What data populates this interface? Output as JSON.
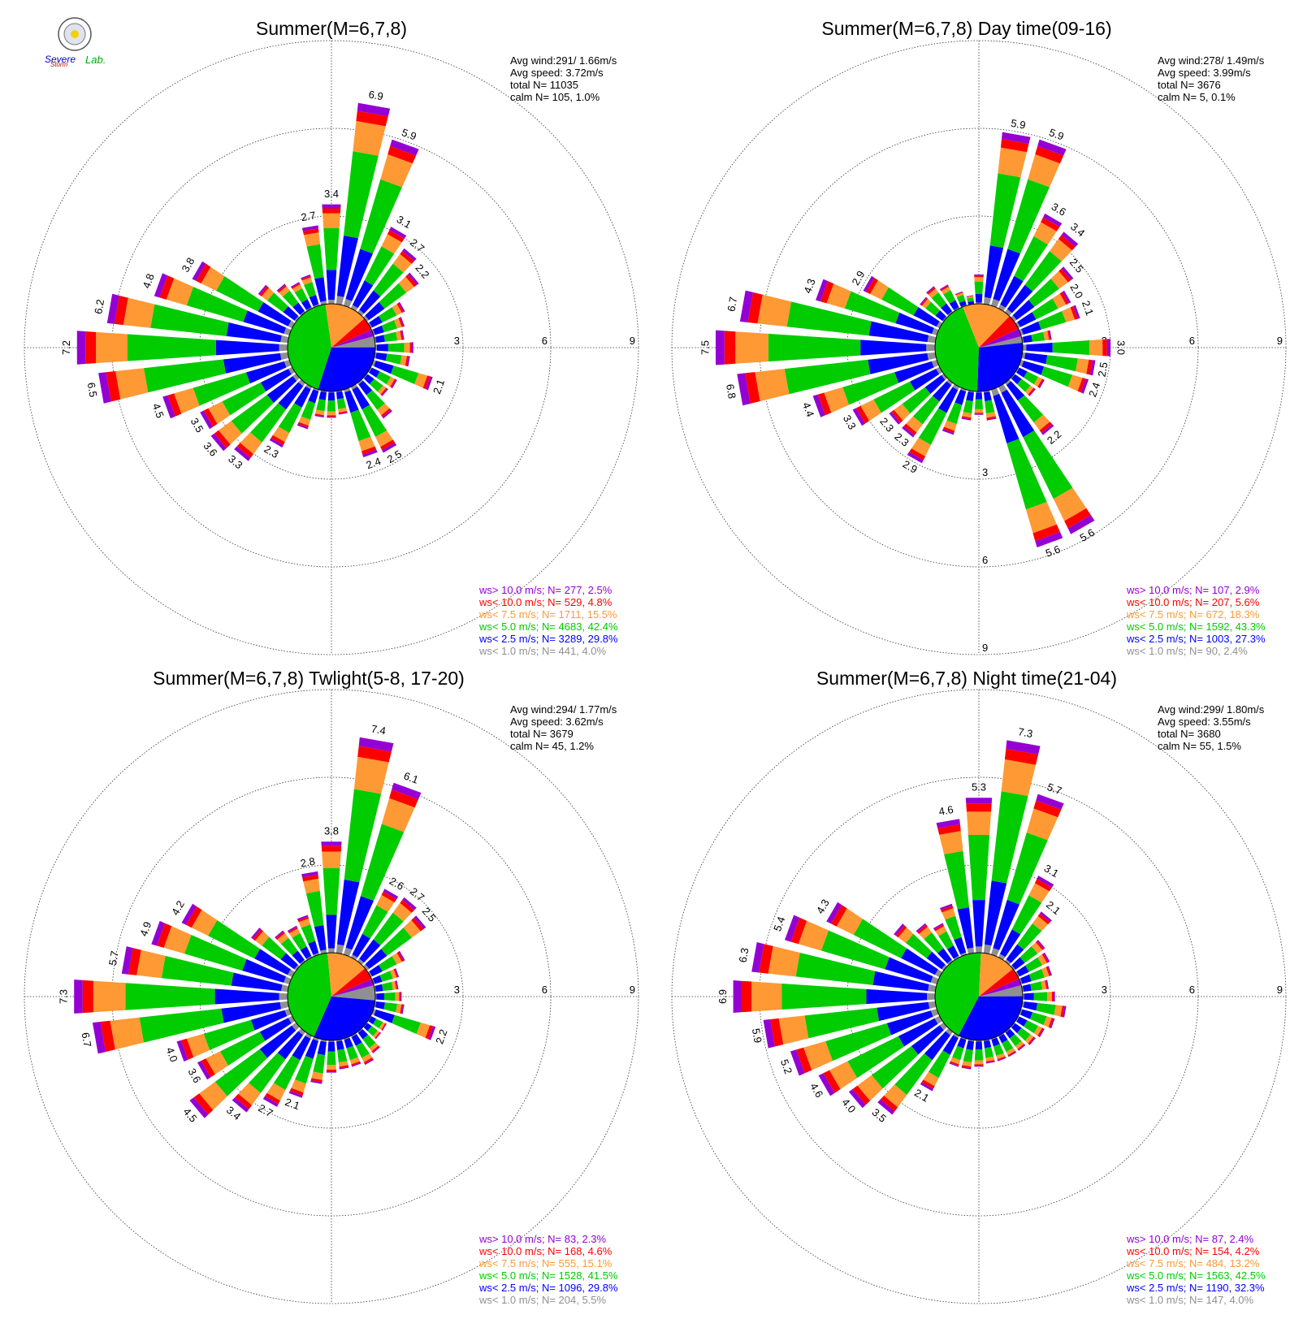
{
  "logo": {
    "text_a": "Severe",
    "text_b": "Storm",
    "text_c": "Lab."
  },
  "colors": {
    "gt10": "#9400d3",
    "lt10": "#ff0000",
    "lt7_5": "#ff9933",
    "lt5": "#00cc00",
    "lt2_5": "#0000ff",
    "lt1": "#909090"
  },
  "chart_data": [
    {
      "type": "windrose",
      "title": "Summer(M=6,7,8)",
      "info": [
        "Avg wind:291/ 1.66m/s",
        "Avg speed: 3.72m/s",
        "total N=      11035",
        "calm N=    105,   1.0%"
      ],
      "rings": [
        3,
        6,
        9
      ],
      "ring_label_direction": "east",
      "legend": [
        {
          "text": "ws> 10.0 m/s; N=   277,  2.5%",
          "color": "#9400d3"
        },
        {
          "text": "ws< 10.0 m/s; N=   529,  4.8%",
          "color": "#ff0000"
        },
        {
          "text": "ws<  7.5 m/s; N=  1711, 15.5%",
          "color": "#ff9933"
        },
        {
          "text": "ws<  5.0 m/s; N=  4683, 42.4%",
          "color": "#00cc00"
        },
        {
          "text": "ws<  2.5 m/s; N=  3289, 29.8%",
          "color": "#0000ff"
        },
        {
          "text": "ws<  1.0 m/s; N=   441,  4.0%",
          "color": "#909090"
        }
      ],
      "inner_pie": [
        4.0,
        29.8,
        42.4,
        15.5,
        4.8,
        2.5
      ],
      "directions_deg": [
        0,
        10,
        20,
        30,
        40,
        50,
        60,
        70,
        80,
        90,
        100,
        110,
        120,
        130,
        140,
        150,
        160,
        170,
        180,
        190,
        200,
        210,
        220,
        230,
        240,
        250,
        260,
        270,
        280,
        290,
        300,
        310,
        320,
        330,
        340,
        350
      ],
      "totals": [
        3.4,
        6.9,
        5.9,
        3.1,
        2.7,
        2.2,
        1.3,
        1.1,
        1.0,
        1.3,
        1.2,
        2.1,
        1.0,
        0.9,
        1.5,
        2.5,
        2.4,
        0.8,
        0.9,
        0.9,
        1.4,
        2.3,
        3.3,
        3.6,
        3.5,
        4.5,
        6.5,
        7.2,
        6.2,
        4.8,
        3.8,
        1.6,
        1.2,
        1.0,
        1.1,
        2.7
      ],
      "labels": {
        "0": "3.4",
        "10": "6.9",
        "20": "5.9",
        "30": "3.1",
        "40": "2.7",
        "50": "2.2",
        "110": "2.1",
        "150": "2.5",
        "160": "2.4",
        "210": "2.3",
        "220": "3.3",
        "230": "3.6",
        "240": "3.5",
        "250": "4.5",
        "260": "6.5",
        "270": "7.2",
        "280": "6.2",
        "290": "4.8",
        "300": "3.8",
        "350": "2.7"
      }
    },
    {
      "type": "windrose",
      "title": "Summer(M=6,7,8) Day time(09-16)",
      "info": [
        "Avg wind:278/ 1.49m/s",
        "Avg speed: 3.99m/s",
        "total N=       3676",
        "calm N=      5,   0.1%"
      ],
      "rings": [
        3,
        6,
        9
      ],
      "ring_label_direction": "east-south",
      "legend": [
        {
          "text": "ws> 10.0 m/s; N=   107,  2.9%",
          "color": "#9400d3"
        },
        {
          "text": "ws< 10.0 m/s; N=   207,  5.6%",
          "color": "#ff0000"
        },
        {
          "text": "ws<  7.5 m/s; N=   672, 18.3%",
          "color": "#ff9933"
        },
        {
          "text": "ws<  5.0 m/s; N=  1592, 43.3%",
          "color": "#00cc00"
        },
        {
          "text": "ws<  2.5 m/s; N=  1003, 27.3%",
          "color": "#0000ff"
        },
        {
          "text": "ws<  1.0 m/s; N=    90,  2.4%",
          "color": "#909090"
        }
      ],
      "inner_pie": [
        2.4,
        27.3,
        43.3,
        18.3,
        5.6,
        2.9
      ],
      "directions_deg": [
        0,
        10,
        20,
        30,
        40,
        50,
        60,
        70,
        80,
        90,
        100,
        110,
        120,
        130,
        140,
        150,
        160,
        170,
        180,
        190,
        200,
        210,
        220,
        230,
        240,
        250,
        260,
        270,
        280,
        290,
        300,
        310,
        320,
        330,
        340,
        350
      ],
      "totals": [
        1.0,
        5.9,
        5.9,
        3.6,
        3.4,
        2.5,
        2.0,
        2.1,
        1.0,
        3.0,
        2.5,
        2.4,
        1.0,
        0.9,
        2.2,
        5.6,
        5.6,
        1.0,
        0.8,
        1.0,
        1.6,
        2.9,
        2.3,
        2.3,
        3.3,
        4.4,
        6.8,
        7.5,
        6.7,
        4.3,
        2.9,
        1.0,
        1.1,
        0.9,
        0.5,
        0.3
      ],
      "labels": {
        "10": "5.9",
        "20": "5.9",
        "30": "3.6",
        "40": "3.4",
        "50": "2.5",
        "60": "2.0",
        "70": "2.1",
        "90": "3.0",
        "100": "2.5",
        "110": "2.4",
        "140": "2.2",
        "150": "5.6",
        "160": "5.6",
        "210": "2.9",
        "220": "2.3",
        "230": "2.3",
        "240": "3.3",
        "250": "4.4",
        "260": "6.8",
        "270": "7.5",
        "280": "6.7",
        "290": "4.3",
        "300": "2.9"
      }
    },
    {
      "type": "windrose",
      "title": "Summer(M=6,7,8) Twlight(5-8, 17-20)",
      "info": [
        "Avg wind:294/ 1.77m/s",
        "Avg speed: 3.62m/s",
        "total N=       3679",
        "calm N=     45,   1.2%"
      ],
      "rings": [
        3,
        6,
        9
      ],
      "ring_label_direction": "east",
      "legend": [
        {
          "text": "ws> 10.0 m/s; N=    83,  2.3%",
          "color": "#9400d3"
        },
        {
          "text": "ws< 10.0 m/s; N=   168,  4.6%",
          "color": "#ff0000"
        },
        {
          "text": "ws<  7.5 m/s; N=   555, 15.1%",
          "color": "#ff9933"
        },
        {
          "text": "ws<  5.0 m/s; N=  1528, 41.5%",
          "color": "#00cc00"
        },
        {
          "text": "ws<  2.5 m/s; N=  1096, 29.8%",
          "color": "#0000ff"
        },
        {
          "text": "ws<  1.0 m/s; N=   204,  5.5%",
          "color": "#909090"
        }
      ],
      "inner_pie": [
        5.5,
        29.8,
        41.5,
        15.1,
        4.6,
        2.3
      ],
      "directions_deg": [
        0,
        10,
        20,
        30,
        40,
        50,
        60,
        70,
        80,
        90,
        100,
        110,
        120,
        130,
        140,
        150,
        160,
        170,
        180,
        190,
        200,
        210,
        220,
        230,
        240,
        250,
        260,
        270,
        280,
        290,
        300,
        310,
        320,
        330,
        340,
        350
      ],
      "totals": [
        3.8,
        7.4,
        6.1,
        2.6,
        2.7,
        2.5,
        1.3,
        0.9,
        0.8,
        0.9,
        1.0,
        2.2,
        0.6,
        0.6,
        0.9,
        1.1,
        1.0,
        1.0,
        1.1,
        1.5,
        2.1,
        2.7,
        3.4,
        4.5,
        3.6,
        4.0,
        6.7,
        7.3,
        5.7,
        4.9,
        4.2,
        1.9,
        1.3,
        1.2,
        1.4,
        2.8
      ],
      "labels": {
        "0": "3.8",
        "10": "7.4",
        "20": "6.1",
        "30": "2.6",
        "40": "2.7",
        "50": "2.5",
        "110": "2.2",
        "200": "2.1",
        "210": "2.7",
        "220": "3.4",
        "230": "4.5",
        "240": "3.6",
        "250": "4.0",
        "260": "6.7",
        "270": "7.3",
        "280": "5.7",
        "290": "4.9",
        "300": "4.2",
        "350": "2.8"
      }
    },
    {
      "type": "windrose",
      "title": "Summer(M=6,7,8) Night time(21-04)",
      "info": [
        "Avg wind:299/ 1.80m/s",
        "Avg speed: 3.55m/s",
        "total N=       3680",
        "calm N=     55,   1.5%"
      ],
      "rings": [
        3,
        6,
        9
      ],
      "ring_label_direction": "east",
      "legend": [
        {
          "text": "ws> 10.0 m/s; N=    87,  2.4%",
          "color": "#9400d3"
        },
        {
          "text": "ws< 10.0 m/s; N=   154,  4.2%",
          "color": "#ff0000"
        },
        {
          "text": "ws<  7.5 m/s; N=   484, 13.2%",
          "color": "#ff9933"
        },
        {
          "text": "ws<  5.0 m/s; N=  1563, 42.5%",
          "color": "#00cc00"
        },
        {
          "text": "ws<  2.5 m/s; N=  1190, 32.3%",
          "color": "#0000ff"
        },
        {
          "text": "ws<  1.0 m/s; N=   147,  4.0%",
          "color": "#909090"
        }
      ],
      "inner_pie": [
        4.0,
        32.3,
        42.5,
        13.2,
        4.2,
        2.4
      ],
      "directions_deg": [
        0,
        10,
        20,
        30,
        40,
        50,
        60,
        70,
        80,
        90,
        100,
        110,
        120,
        130,
        140,
        150,
        160,
        170,
        180,
        190,
        200,
        210,
        220,
        230,
        240,
        250,
        260,
        270,
        280,
        290,
        300,
        310,
        320,
        330,
        340,
        350
      ],
      "totals": [
        5.3,
        7.3,
        5.7,
        3.1,
        2.1,
        1.3,
        1.2,
        1.1,
        0.9,
        1.1,
        1.5,
        1.2,
        1.0,
        0.9,
        0.8,
        0.8,
        0.8,
        0.8,
        0.9,
        1.0,
        1.0,
        2.1,
        3.5,
        4.0,
        4.6,
        5.2,
        5.9,
        6.9,
        6.3,
        5.4,
        4.3,
        2.1,
        1.6,
        1.3,
        1.8,
        4.6
      ],
      "labels": {
        "0": "5.3",
        "10": "7.3",
        "20": "5.7",
        "30": "3.1",
        "40": "2.1",
        "210": "2.1",
        "220": "3.5",
        "230": "4.0",
        "240": "4.6",
        "250": "5.2",
        "260": "5.9",
        "270": "6.9",
        "280": "6.3",
        "290": "5.4",
        "300": "4.3",
        "350": "4.6"
      }
    }
  ]
}
